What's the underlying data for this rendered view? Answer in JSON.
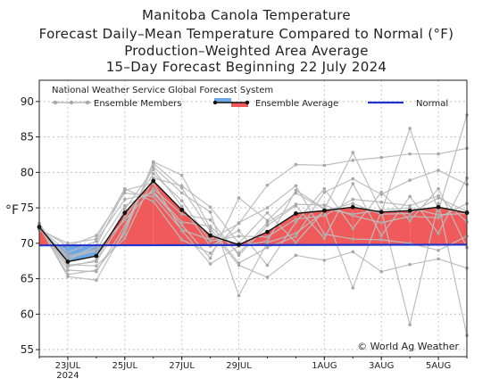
{
  "chart_data": {
    "type": "line",
    "title": "Manitoba Canola Temperature",
    "subtitle_lines": [
      "Forecast Daily–Mean Temperature Compared to Normal (°F)",
      "Production–Weighted Area Average",
      "15–Day Forecast Beginning 22 July 2024"
    ],
    "ylabel": "°F",
    "ylim": [
      54,
      93
    ],
    "yticks": [
      55,
      60,
      65,
      70,
      75,
      80,
      85,
      90
    ],
    "x_dates": [
      "22JUL",
      "23JUL",
      "24JUL",
      "25JUL",
      "26JUL",
      "27JUL",
      "28JUL",
      "29JUL",
      "30JUL",
      "31JUL",
      "1AUG",
      "2AUG",
      "3AUG",
      "4AUG",
      "5AUG",
      "6AUG"
    ],
    "x_tick_labels": [
      {
        "date": "23JUL",
        "label": "23JUL",
        "sub": "2024"
      },
      {
        "date": "25JUL",
        "label": "25JUL",
        "sub": ""
      },
      {
        "date": "27JUL",
        "label": "27JUL",
        "sub": ""
      },
      {
        "date": "29JUL",
        "label": "29JUL",
        "sub": ""
      },
      {
        "date": "1AUG",
        "label": "1AUG",
        "sub": ""
      },
      {
        "date": "3AUG",
        "label": "3AUG",
        "sub": ""
      },
      {
        "date": "5AUG",
        "label": "5AUG",
        "sub": ""
      }
    ],
    "grid": true,
    "legend": {
      "header": "National Weather Service Global Forecast System",
      "ensemble_members": "Ensemble Members",
      "ensemble_average": "Ensemble Average",
      "normal": "Normal"
    },
    "credit": "© World Ag Weather",
    "series": [
      {
        "name": "Ensemble Average",
        "x": [
          "22JUL",
          "23JUL",
          "24JUL",
          "25JUL",
          "26JUL",
          "27JUL",
          "28JUL",
          "29JUL",
          "30JUL",
          "31JUL",
          "1AUG",
          "2AUG",
          "3AUG",
          "4AUG",
          "5AUG",
          "6AUG"
        ],
        "y": [
          72.3,
          67.4,
          68.2,
          74.3,
          78.8,
          74.7,
          71.1,
          69.8,
          71.6,
          74.2,
          74.6,
          75.1,
          74.4,
          74.6,
          75.1,
          74.3
        ]
      },
      {
        "name": "Normal",
        "x": [
          "22JUL",
          "6AUG"
        ],
        "y": [
          69.7,
          69.8
        ]
      }
    ],
    "ensemble_members": [
      [
        72.8,
        66.9,
        67.4,
        73.6,
        79.8,
        76.0,
        70.3,
        71.0,
        70.9,
        73.4,
        73.9,
        76.2,
        75.8,
        75.3,
        76.7,
        73.0
      ],
      [
        72.0,
        68.2,
        69.1,
        75.3,
        77.3,
        73.0,
        72.4,
        68.6,
        72.9,
        75.5,
        75.4,
        73.9,
        72.9,
        73.8,
        73.6,
        75.6
      ],
      [
        72.6,
        65.6,
        66.2,
        71.4,
        81.5,
        79.6,
        72.1,
        67.2,
        69.4,
        71.0,
        77.2,
        79.1,
        76.9,
        78.9,
        80.3,
        78.3
      ],
      [
        71.9,
        70.0,
        70.6,
        77.7,
        75.9,
        70.5,
        68.6,
        72.9,
        75.0,
        78.1,
        71.3,
        70.6,
        70.5,
        70.0,
        69.0,
        71.0
      ],
      [
        72.5,
        66.7,
        67.6,
        74.8,
        80.4,
        75.2,
        69.6,
        71.8,
        66.9,
        73.0,
        77.7,
        72.1,
        77.2,
        73.2,
        77.7,
        69.4
      ],
      [
        72.2,
        68.0,
        68.9,
        73.3,
        77.7,
        74.1,
        73.3,
        68.3,
        72.5,
        75.3,
        70.7,
        78.4,
        71.1,
        76.6,
        71.4,
        79.2
      ],
      [
        72.3,
        67.0,
        66.8,
        70.7,
        79.2,
        78.1,
        75.1,
        70.0,
        74.3,
        70.1,
        74.6,
        75.6,
        74.1,
        74.2,
        76.4,
        74.5
      ],
      [
        72.4,
        67.6,
        69.7,
        77.5,
        78.5,
        71.8,
        67.1,
        69.6,
        70.3,
        77.5,
        74.9,
        74.1,
        74.7,
        75.0,
        74.0,
        74.2
      ],
      [
        72.4,
        65.3,
        64.8,
        71.9,
        81.3,
        77.8,
        71.7,
        66.9,
        65.2,
        68.3,
        67.6,
        68.8,
        66.0,
        67.0,
        67.8,
        66.5
      ],
      [
        72.1,
        69.6,
        71.1,
        77.1,
        76.6,
        71.9,
        70.5,
        72.8,
        78.2,
        81.1,
        81.0,
        81.7,
        82.1,
        82.6,
        82.6,
        83.4
      ],
      [
        72.6,
        66.2,
        66.0,
        72.4,
        80.8,
        77.1,
        74.4,
        62.6,
        70.1,
        71.4,
        74.5,
        63.7,
        74.6,
        58.5,
        75.6,
        57.0
      ],
      [
        72.2,
        68.7,
        70.3,
        76.2,
        77.1,
        72.6,
        67.9,
        76.4,
        73.2,
        77.1,
        74.8,
        82.8,
        74.4,
        86.2,
        74.6,
        88.1
      ]
    ]
  }
}
